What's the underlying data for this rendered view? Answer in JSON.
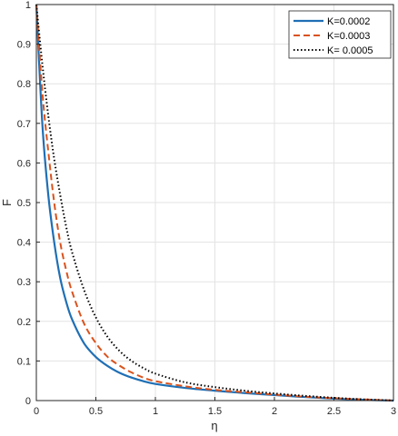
{
  "chart_data": {
    "type": "line",
    "title": "",
    "xlabel": "η",
    "ylabel": "F",
    "xlim": [
      0,
      3
    ],
    "ylim": [
      0,
      1
    ],
    "xticks": [
      0,
      0.5,
      1,
      1.5,
      2,
      2.5,
      3
    ],
    "yticks": [
      0,
      0.1,
      0.2,
      0.3,
      0.4,
      0.5,
      0.6,
      0.7,
      0.8,
      0.9,
      1
    ],
    "xtick_labels": [
      "0",
      "0.5",
      "1",
      "1.5",
      "2",
      "2.5",
      "3"
    ],
    "ytick_labels": [
      "0",
      "0.1",
      "0.2",
      "0.3",
      "0.4",
      "0.5",
      "0.6",
      "0.7",
      "0.8",
      "0.9",
      "1"
    ],
    "grid": true,
    "legend_position": "top-right",
    "x": [
      0,
      0.05,
      0.1,
      0.15,
      0.2,
      0.25,
      0.3,
      0.4,
      0.5,
      0.6,
      0.7,
      0.8,
      0.9,
      1.0,
      1.25,
      1.5,
      1.75,
      2.0,
      2.25,
      2.5,
      2.75,
      3.0
    ],
    "series": [
      {
        "name": "K=0.0002",
        "color": "#1f6fb5",
        "style": "solid",
        "values": [
          1.0,
          0.7,
          0.52,
          0.4,
          0.31,
          0.25,
          0.205,
          0.145,
          0.11,
          0.087,
          0.07,
          0.058,
          0.049,
          0.042,
          0.032,
          0.025,
          0.019,
          0.014,
          0.009,
          0.005,
          0.002,
          0.0
        ]
      },
      {
        "name": "K=0.0003",
        "color": "#d9531e",
        "style": "dashed",
        "values": [
          1.0,
          0.78,
          0.63,
          0.5,
          0.4,
          0.33,
          0.275,
          0.195,
          0.145,
          0.11,
          0.088,
          0.071,
          0.058,
          0.049,
          0.036,
          0.027,
          0.021,
          0.015,
          0.01,
          0.006,
          0.003,
          0.0
        ]
      },
      {
        "name": "K= 0.0005",
        "color": "#000000",
        "style": "dotted",
        "values": [
          1.0,
          0.85,
          0.72,
          0.61,
          0.52,
          0.44,
          0.375,
          0.28,
          0.21,
          0.16,
          0.125,
          0.1,
          0.082,
          0.068,
          0.046,
          0.034,
          0.025,
          0.018,
          0.012,
          0.007,
          0.003,
          0.0
        ]
      }
    ]
  }
}
